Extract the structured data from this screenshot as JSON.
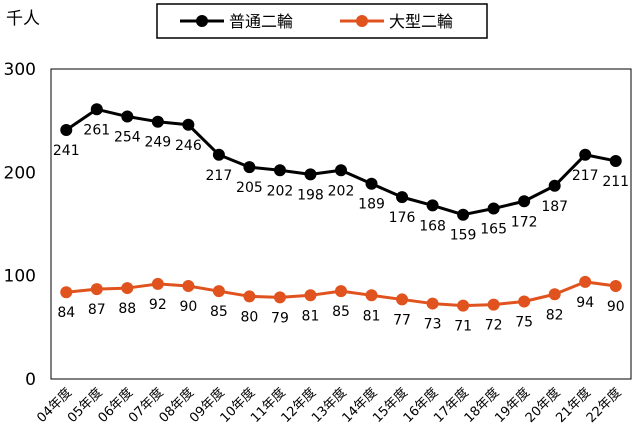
{
  "chart_data": {
    "type": "line",
    "unit_label": "千人",
    "categories": [
      "04年度",
      "05年度",
      "06年度",
      "07年度",
      "08年度",
      "09年度",
      "10年度",
      "11年度",
      "12年度",
      "13年度",
      "14年度",
      "15年度",
      "16年度",
      "17年度",
      "18年度",
      "19年度",
      "20年度",
      "21年度",
      "22年度"
    ],
    "ylim": [
      0,
      300
    ],
    "yticks": [
      0,
      100,
      200,
      300
    ],
    "grid": false,
    "legend_position": "top",
    "series": [
      {
        "name": "普通二輪",
        "color": "#000000",
        "values": [
          241,
          261,
          254,
          249,
          246,
          217,
          205,
          202,
          198,
          202,
          189,
          176,
          168,
          159,
          165,
          172,
          187,
          217,
          211
        ]
      },
      {
        "name": "大型二輪",
        "color": "#E0521E",
        "values": [
          84,
          87,
          88,
          92,
          90,
          85,
          80,
          79,
          81,
          85,
          81,
          77,
          73,
          71,
          72,
          75,
          82,
          94,
          90
        ]
      }
    ]
  }
}
